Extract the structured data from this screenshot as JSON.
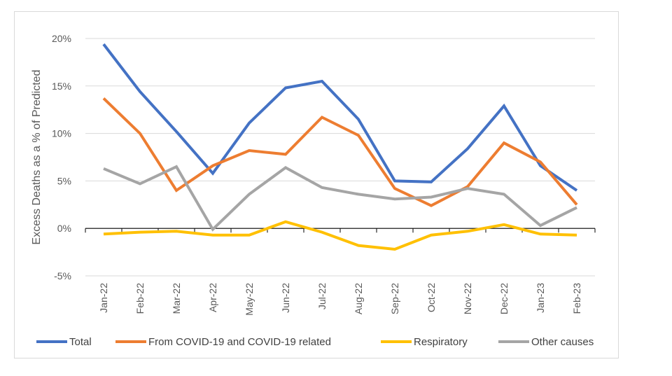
{
  "chart_data": {
    "type": "line",
    "title": "",
    "xlabel": "",
    "ylabel": "Excess Deaths as a % of Predicted",
    "categories": [
      "Jan-22",
      "Feb-22",
      "Mar-22",
      "Apr-22",
      "May-22",
      "Jun-22",
      "Jul-22",
      "Aug-22",
      "Sep-22",
      "Oct-22",
      "Nov-22",
      "Dec-22",
      "Jan-23",
      "Feb-23"
    ],
    "ylim": [
      -5,
      20
    ],
    "yticks": [
      -5,
      0,
      5,
      10,
      15,
      20
    ],
    "ytick_labels": [
      "-5%",
      "0%",
      "5%",
      "10%",
      "15%",
      "20%"
    ],
    "grid": true,
    "legend_position": "bottom",
    "series": [
      {
        "name": "Total",
        "color": "#4472C4",
        "values": [
          19.4,
          14.4,
          10.2,
          5.8,
          11.1,
          14.8,
          15.5,
          11.5,
          5.0,
          4.9,
          8.4,
          12.9,
          6.6,
          4.0
        ]
      },
      {
        "name": "From COVID-19 and COVID-19 related",
        "color": "#ED7D31",
        "values": [
          13.7,
          10.0,
          4.0,
          6.6,
          8.2,
          7.8,
          11.7,
          9.8,
          4.2,
          2.4,
          4.4,
          9.0,
          7.0,
          2.5
        ]
      },
      {
        "name": "Respiratory",
        "color": "#FFC000",
        "values": [
          -0.6,
          -0.4,
          -0.3,
          -0.7,
          -0.7,
          0.7,
          -0.4,
          -1.8,
          -2.2,
          -0.7,
          -0.3,
          0.4,
          -0.6,
          -0.7
        ]
      },
      {
        "name": "Other causes",
        "color": "#A5A5A5",
        "values": [
          6.3,
          4.7,
          6.5,
          -0.1,
          3.6,
          6.4,
          4.3,
          3.6,
          3.1,
          3.3,
          4.2,
          3.6,
          0.3,
          2.2
        ]
      }
    ]
  }
}
